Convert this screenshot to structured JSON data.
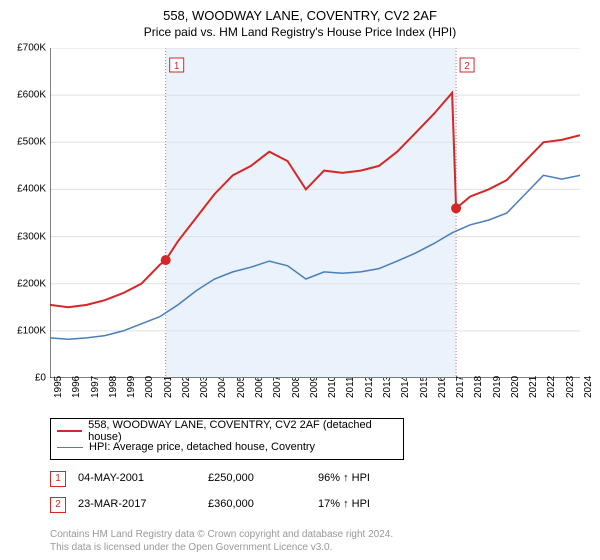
{
  "title": "558, WOODWAY LANE, COVENTRY, CV2 2AF",
  "subtitle": "Price paid vs. HM Land Registry's House Price Index (HPI)",
  "chart": {
    "type": "line",
    "background_color": "#ffffff",
    "band_color": "#eaf2fb",
    "grid_color": "#e0e0e0",
    "vline_color": "#e06666",
    "ylim": [
      0,
      700000
    ],
    "ytick_step": 100000,
    "ytick_labels": [
      "£0",
      "£100K",
      "£200K",
      "£300K",
      "£400K",
      "£500K",
      "£600K",
      "£700K"
    ],
    "xlim": [
      1995,
      2024
    ],
    "xtick_labels": [
      "1995",
      "1996",
      "1997",
      "1998",
      "1999",
      "2000",
      "2001",
      "2002",
      "2003",
      "2004",
      "2005",
      "2006",
      "2007",
      "2008",
      "2009",
      "2010",
      "2011",
      "2012",
      "2013",
      "2014",
      "2015",
      "2016",
      "2017",
      "2018",
      "2019",
      "2020",
      "2021",
      "2022",
      "2023",
      "2024"
    ],
    "series": [
      {
        "name": "price_paid",
        "label": "558, WOODWAY LANE, COVENTRY, CV2 2AF (detached house)",
        "color": "#d62728",
        "line_width": 2,
        "data": [
          [
            1995,
            155000
          ],
          [
            1996,
            150000
          ],
          [
            1997,
            155000
          ],
          [
            1998,
            165000
          ],
          [
            1999,
            180000
          ],
          [
            2000,
            200000
          ],
          [
            2001,
            240000
          ],
          [
            2001.33,
            250000
          ],
          [
            2002,
            290000
          ],
          [
            2003,
            340000
          ],
          [
            2004,
            390000
          ],
          [
            2005,
            430000
          ],
          [
            2006,
            450000
          ],
          [
            2007,
            480000
          ],
          [
            2008,
            460000
          ],
          [
            2009,
            400000
          ],
          [
            2010,
            440000
          ],
          [
            2011,
            435000
          ],
          [
            2012,
            440000
          ],
          [
            2013,
            450000
          ],
          [
            2014,
            480000
          ],
          [
            2015,
            520000
          ],
          [
            2016,
            560000
          ],
          [
            2017,
            605000
          ],
          [
            2017.22,
            360000
          ],
          [
            2018,
            385000
          ],
          [
            2019,
            400000
          ],
          [
            2020,
            420000
          ],
          [
            2021,
            460000
          ],
          [
            2022,
            500000
          ],
          [
            2023,
            505000
          ],
          [
            2024,
            515000
          ]
        ]
      },
      {
        "name": "hpi",
        "label": "HPI: Average price, detached house, Coventry",
        "color": "#4a7ebb",
        "line_width": 1.5,
        "data": [
          [
            1995,
            85000
          ],
          [
            1996,
            82000
          ],
          [
            1997,
            85000
          ],
          [
            1998,
            90000
          ],
          [
            1999,
            100000
          ],
          [
            2000,
            115000
          ],
          [
            2001,
            130000
          ],
          [
            2002,
            155000
          ],
          [
            2003,
            185000
          ],
          [
            2004,
            210000
          ],
          [
            2005,
            225000
          ],
          [
            2006,
            235000
          ],
          [
            2007,
            248000
          ],
          [
            2008,
            238000
          ],
          [
            2009,
            210000
          ],
          [
            2010,
            225000
          ],
          [
            2011,
            222000
          ],
          [
            2012,
            225000
          ],
          [
            2013,
            232000
          ],
          [
            2014,
            248000
          ],
          [
            2015,
            265000
          ],
          [
            2016,
            285000
          ],
          [
            2017,
            308000
          ],
          [
            2018,
            325000
          ],
          [
            2019,
            335000
          ],
          [
            2020,
            350000
          ],
          [
            2021,
            390000
          ],
          [
            2022,
            430000
          ],
          [
            2023,
            422000
          ],
          [
            2024,
            430000
          ]
        ]
      }
    ],
    "sale_markers": [
      {
        "n": 1,
        "x": 2001.33,
        "y": 250000,
        "color": "#d62728"
      },
      {
        "n": 2,
        "x": 2017.22,
        "y": 360000,
        "color": "#d62728"
      }
    ],
    "marker_size": 5
  },
  "legend": {
    "border_color": "#000000",
    "entries": [
      {
        "color": "#d62728",
        "width": 2,
        "key": "chart.series.0.label"
      },
      {
        "color": "#4a7ebb",
        "width": 1.5,
        "key": "chart.series.1.label"
      }
    ]
  },
  "sales_table": {
    "rows": [
      {
        "n": "1",
        "date": "04-MAY-2001",
        "price": "£250,000",
        "pct": "96% ↑ HPI",
        "color": "#d62728"
      },
      {
        "n": "2",
        "date": "23-MAR-2017",
        "price": "£360,000",
        "pct": "17% ↑ HPI",
        "color": "#d62728"
      }
    ]
  },
  "footer": {
    "line1": "Contains HM Land Registry data © Crown copyright and database right 2024.",
    "line2": "This data is licensed under the Open Government Licence v3.0."
  }
}
